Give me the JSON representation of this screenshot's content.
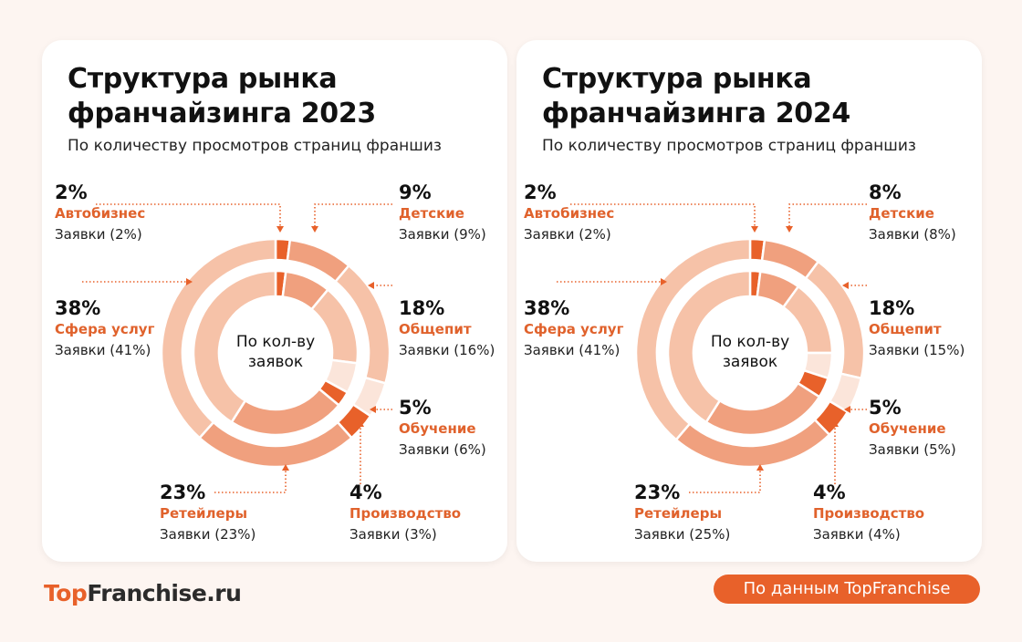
{
  "colors": {
    "accent": "#e8612a",
    "mid": "#f0a07e",
    "light": "#f6c2a8",
    "pale": "#fbe5da",
    "background": "#fdf5f1"
  },
  "chart_data": [
    {
      "type": "donut",
      "title": "Структура рынка франчайзинга 2023",
      "subtitle": "По количеству просмотров страниц франшиз",
      "center_label": "По кол-ву заявок",
      "categories": [
        "Автобизнес",
        "Детские",
        "Общепит",
        "Обучение",
        "Производство",
        "Ретейлеры",
        "Сфера услуг"
      ],
      "series": [
        {
          "values": [
            2,
            9,
            18,
            5,
            4,
            23,
            38
          ]
        },
        {
          "name": "Заявки",
          "values": [
            2,
            9,
            16,
            6,
            3,
            23,
            41
          ]
        }
      ]
    },
    {
      "type": "donut",
      "title": "Структура рынка франчайзинга 2024",
      "subtitle": "По количеству просмотров страниц франшиз",
      "center_label": "По кол-ву заявок",
      "categories": [
        "Автобизнес",
        "Детские",
        "Общепит",
        "Обучение",
        "Производство",
        "Ретейлеры",
        "Сфера услуг"
      ],
      "series": [
        {
          "values": [
            2,
            8,
            18,
            5,
            4,
            23,
            38
          ]
        },
        {
          "name": "Заявки",
          "values": [
            2,
            8,
            15,
            5,
            4,
            25,
            41
          ]
        }
      ]
    }
  ],
  "cards": [
    {
      "title1": "Структура рынка",
      "title2": "франчайзинга 2023",
      "labels": []
    },
    {
      "title1": "Структура рынка",
      "title2": "франчайзинга 2024",
      "labels": []
    }
  ],
  "footer": {
    "logo_top": "Top",
    "logo_rest": "Franchise.ru",
    "badge": "По данным TopFranchise"
  }
}
